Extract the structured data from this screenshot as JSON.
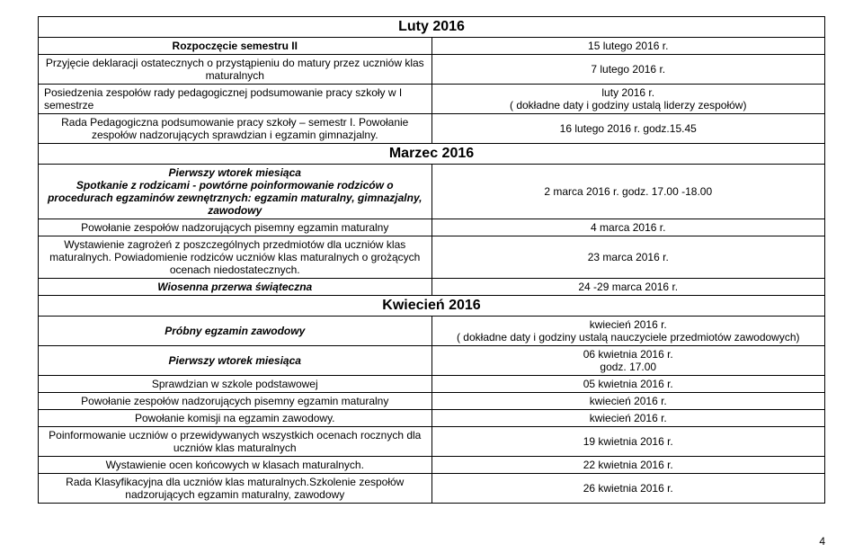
{
  "months": {
    "luty": "Luty 2016",
    "marzec": "Marzec 2016",
    "kwiecien": "Kwiecień 2016"
  },
  "rows": {
    "r1": {
      "l": "Rozpoczęcie semestru II",
      "r": "15 lutego 2016 r."
    },
    "r2": {
      "l": "Przyjęcie deklaracji ostatecznych o przystąpieniu do matury  przez uczniów klas maturalnych",
      "r": "7 lutego 2016 r."
    },
    "r3": {
      "l": "Posiedzenia zespołów rady pedagogicznej podsumowanie pracy szkoły w I semestrze",
      "r1": "luty 2016 r.",
      "r2": "( dokładne daty i godziny ustalą liderzy zespołów)"
    },
    "r4": {
      "l": "Rada Pedagogiczna podsumowanie pracy szkoły – semestr I.  Powołanie zespołów nadzorujących  sprawdzian i egzamin gimnazjalny.",
      "r": "16 lutego 2016 r. godz.15.45"
    },
    "r5": {
      "l1": "Pierwszy wtorek miesiąca",
      "l2": "Spotkanie z rodzicami - powtórne poinformowanie rodziców o procedurach egzaminów zewnętrznych: egzamin maturalny, gimnazjalny, zawodowy",
      "r": "2 marca 2016 r. godz. 17.00 -18.00"
    },
    "r6": {
      "l": "Powołanie zespołów  nadzorujących pisemny egzamin maturalny",
      "r": "4 marca 2016 r."
    },
    "r7": {
      "l": "Wystawienie zagrożeń z poszczególnych przedmiotów dla uczniów klas maturalnych. Powiadomienie rodziców uczniów klas maturalnych o grożących ocenach niedostatecznych.",
      "r": "23 marca 2016 r."
    },
    "r8": {
      "l": "Wiosenna przerwa świąteczna",
      "r": "24 -29  marca 2016 r."
    },
    "r9": {
      "l": "Próbny egzamin zawodowy",
      "r1": "kwiecień  2016 r.",
      "r2": "( dokładne daty i godziny ustalą nauczyciele przedmiotów zawodowych)"
    },
    "r10": {
      "l": "Pierwszy wtorek miesiąca",
      "r1": "06 kwietnia 2016 r.",
      "r2": "godz. 17.00"
    },
    "r11": {
      "l": "Sprawdzian w szkole podstawowej",
      "r": "05 kwietnia 2016 r."
    },
    "r12": {
      "l": "Powołanie zespołów  nadzorujących pisemny egzamin maturalny",
      "r": "kwiecień 2016 r."
    },
    "r13": {
      "l": "Powołanie komisji na egzamin zawodowy.",
      "r": "kwiecień 2016 r."
    },
    "r14": {
      "l": "Poinformowanie uczniów o przewidywanych wszystkich ocenach rocznych dla uczniów klas maturalnych",
      "r": "19 kwietnia 2016 r."
    },
    "r15": {
      "l": "Wystawienie ocen końcowych w klasach maturalnych.",
      "r": "22 kwietnia 2016 r."
    },
    "r16": {
      "l": "Rada Klasyfikacyjna dla uczniów klas maturalnych.Szkolenie zespołów nadzorujących egzamin maturalny, zawodowy",
      "r": "26 kwietnia 2016 r."
    }
  },
  "pagenum": "4"
}
